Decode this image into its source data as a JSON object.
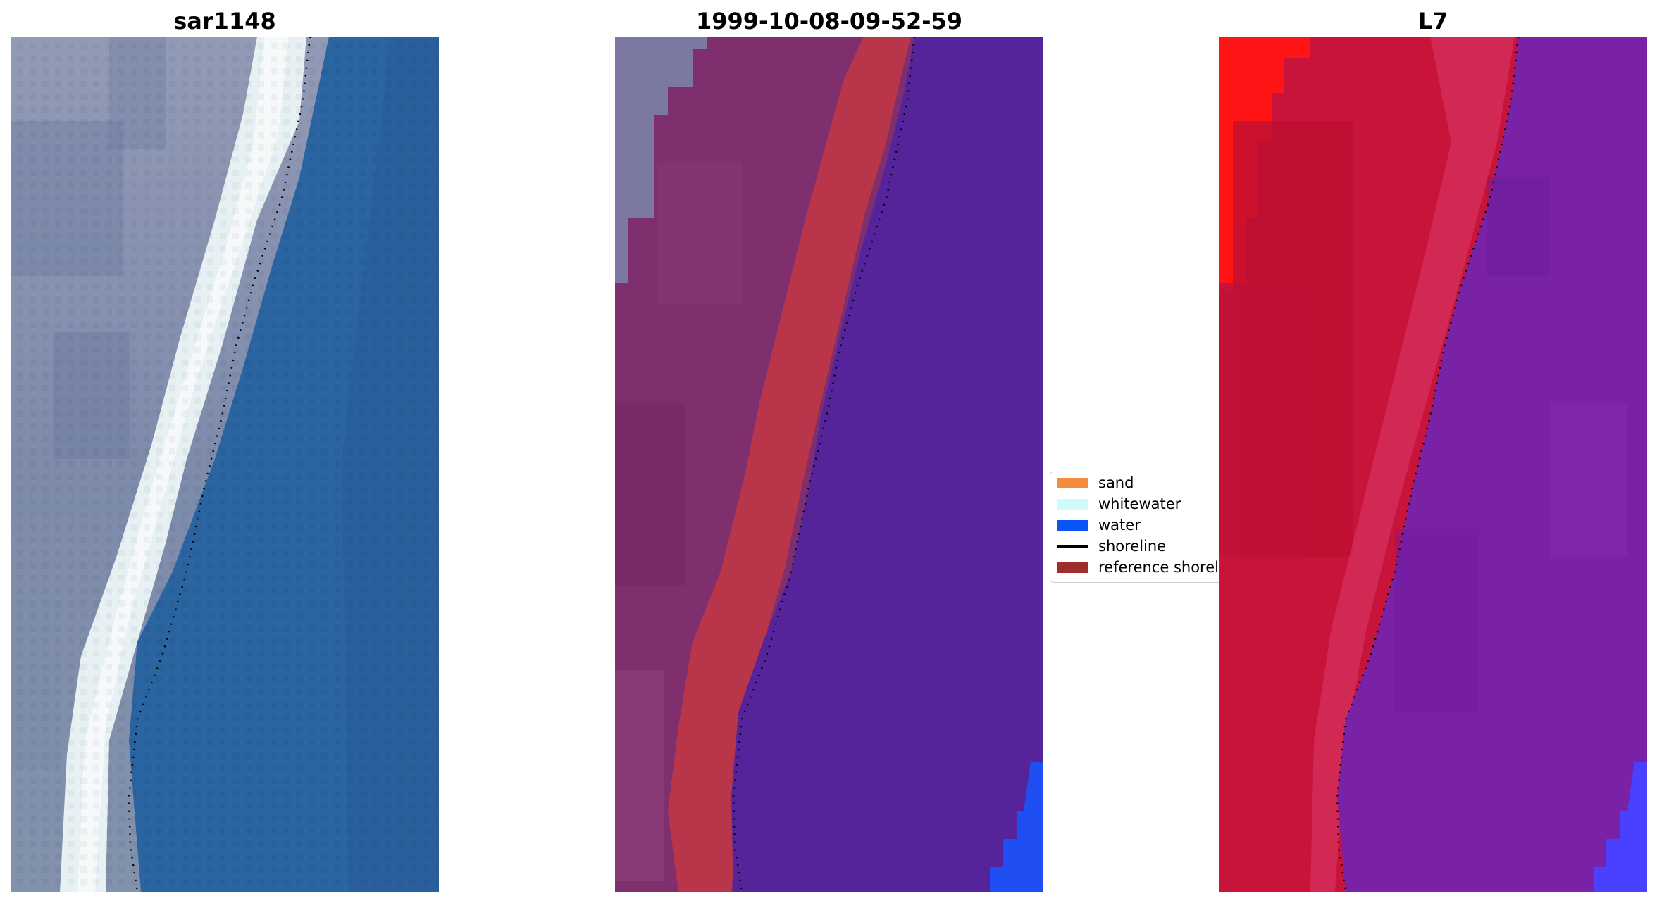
{
  "panels": [
    {
      "title": "sar1148"
    },
    {
      "title": "1999-10-08-09-52-59"
    },
    {
      "title": "L7"
    }
  ],
  "legend": {
    "items": [
      {
        "label": "sand",
        "kind": "patch",
        "color": "#F58B3C"
      },
      {
        "label": "whitewater",
        "kind": "patch",
        "color": "#CFFCFA"
      },
      {
        "label": "water",
        "kind": "patch",
        "color": "#0A55F5"
      },
      {
        "label": "shoreline",
        "kind": "line",
        "color": "#000000"
      },
      {
        "label": "reference shoreline",
        "kind": "patch",
        "color": "#A02D2D"
      }
    ]
  },
  "colors": {
    "sar_land": "#7f8dab",
    "sar_water": "#235f9e",
    "sar_whitewater": "#e8f2f4",
    "classified_land": "#7f2f6e",
    "classified_sand_overlay": "#b9364a",
    "classified_water": "#56249a",
    "classified_water_edge": "#1f4ff2",
    "ndwi_land_red": "#ff1515",
    "ndwi_land": "#c8143a",
    "ndwi_water": "#7a22a6",
    "ndwi_water_edge": "#4a40ff"
  }
}
